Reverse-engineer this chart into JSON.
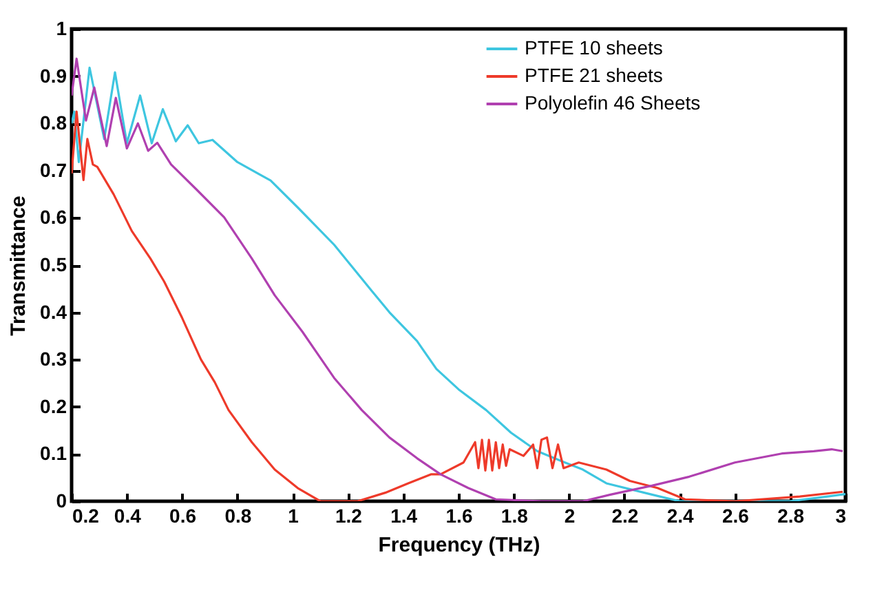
{
  "chart_data": {
    "type": "line",
    "xlabel": "Frequency (THz)",
    "ylabel": "Transmittance",
    "xlim": [
      0.2,
      3
    ],
    "ylim": [
      0,
      1
    ],
    "xticks": [
      0.2,
      0.4,
      0.6,
      0.8,
      1,
      1.2,
      1.4,
      1.6,
      1.8,
      2,
      2.2,
      2.4,
      2.6,
      2.8,
      3
    ],
    "yticks": [
      0,
      0.1,
      0.2,
      0.3,
      0.4,
      0.5,
      0.6,
      0.7,
      0.8,
      0.9,
      1
    ],
    "grid": false,
    "legend": "top right",
    "line_style": "solid",
    "marker": "none",
    "series": [
      {
        "name": "PTFE 10 sheets",
        "color": "#3ec6e0",
        "x": [
          0.2,
          0.21,
          0.226,
          0.265,
          0.318,
          0.357,
          0.4,
          0.448,
          0.49,
          0.53,
          0.577,
          0.62,
          0.66,
          0.71,
          0.8,
          0.92,
          1.02,
          1.15,
          1.285,
          1.35,
          1.45,
          1.52,
          1.6,
          1.7,
          1.79,
          1.885,
          1.985,
          2.05,
          2.135,
          2.3,
          2.4,
          2.6,
          2.8,
          2.935,
          3
        ],
        "values": [
          0.8,
          0.825,
          0.718,
          0.918,
          0.767,
          0.908,
          0.758,
          0.859,
          0.758,
          0.83,
          0.762,
          0.796,
          0.758,
          0.765,
          0.718,
          0.679,
          0.621,
          0.543,
          0.446,
          0.4,
          0.339,
          0.28,
          0.237,
          0.193,
          0.145,
          0.106,
          0.082,
          0.067,
          0.038,
          0.014,
          0,
          0,
          0,
          0.01,
          0.015
        ]
      },
      {
        "name": "PTFE 21 sheets",
        "color": "#ee3a2a",
        "x": [
          0.2,
          0.218,
          0.243,
          0.257,
          0.277,
          0.293,
          0.352,
          0.418,
          0.485,
          0.535,
          0.6,
          0.668,
          0.718,
          0.768,
          0.852,
          0.935,
          1.018,
          1.1,
          1.235,
          1.335,
          1.418,
          1.5,
          1.535,
          1.618,
          1.66,
          1.672,
          1.685,
          1.697,
          1.71,
          1.722,
          1.735,
          1.747,
          1.76,
          1.772,
          1.785,
          1.835,
          1.87,
          1.885,
          1.9,
          1.92,
          1.94,
          1.96,
          1.98,
          2.035,
          2.135,
          2.22,
          2.32,
          2.42,
          2.6,
          2.835,
          2.99
        ],
        "values": [
          0.694,
          0.825,
          0.68,
          0.767,
          0.713,
          0.708,
          0.65,
          0.572,
          0.514,
          0.465,
          0.388,
          0.3,
          0.252,
          0.193,
          0.125,
          0.067,
          0.028,
          0,
          0,
          0.018,
          0.038,
          0.057,
          0.057,
          0.082,
          0.125,
          0.07,
          0.13,
          0.065,
          0.13,
          0.065,
          0.125,
          0.07,
          0.12,
          0.075,
          0.11,
          0.096,
          0.12,
          0.07,
          0.13,
          0.135,
          0.07,
          0.12,
          0.07,
          0.082,
          0.067,
          0.043,
          0.028,
          0.004,
          0,
          0.01,
          0.02
        ]
      },
      {
        "name": "Polyolefin 46 Sheets",
        "color": "#b040b0",
        "x": [
          0.2,
          0.218,
          0.252,
          0.282,
          0.327,
          0.36,
          0.4,
          0.44,
          0.477,
          0.51,
          0.56,
          0.652,
          0.752,
          0.852,
          0.935,
          1.035,
          1.15,
          1.25,
          1.35,
          1.45,
          1.535,
          1.635,
          1.735,
          1.9,
          2.05,
          2.15,
          2.3,
          2.435,
          2.6,
          2.77,
          2.885,
          2.95,
          2.99
        ],
        "values": [
          0.859,
          0.937,
          0.806,
          0.876,
          0.752,
          0.854,
          0.747,
          0.8,
          0.742,
          0.759,
          0.713,
          0.66,
          0.601,
          0.514,
          0.436,
          0.359,
          0.261,
          0.193,
          0.135,
          0.091,
          0.057,
          0.028,
          0.004,
          0,
          0,
          0.014,
          0.033,
          0.052,
          0.082,
          0.101,
          0.106,
          0.11,
          0.106
        ]
      }
    ]
  }
}
